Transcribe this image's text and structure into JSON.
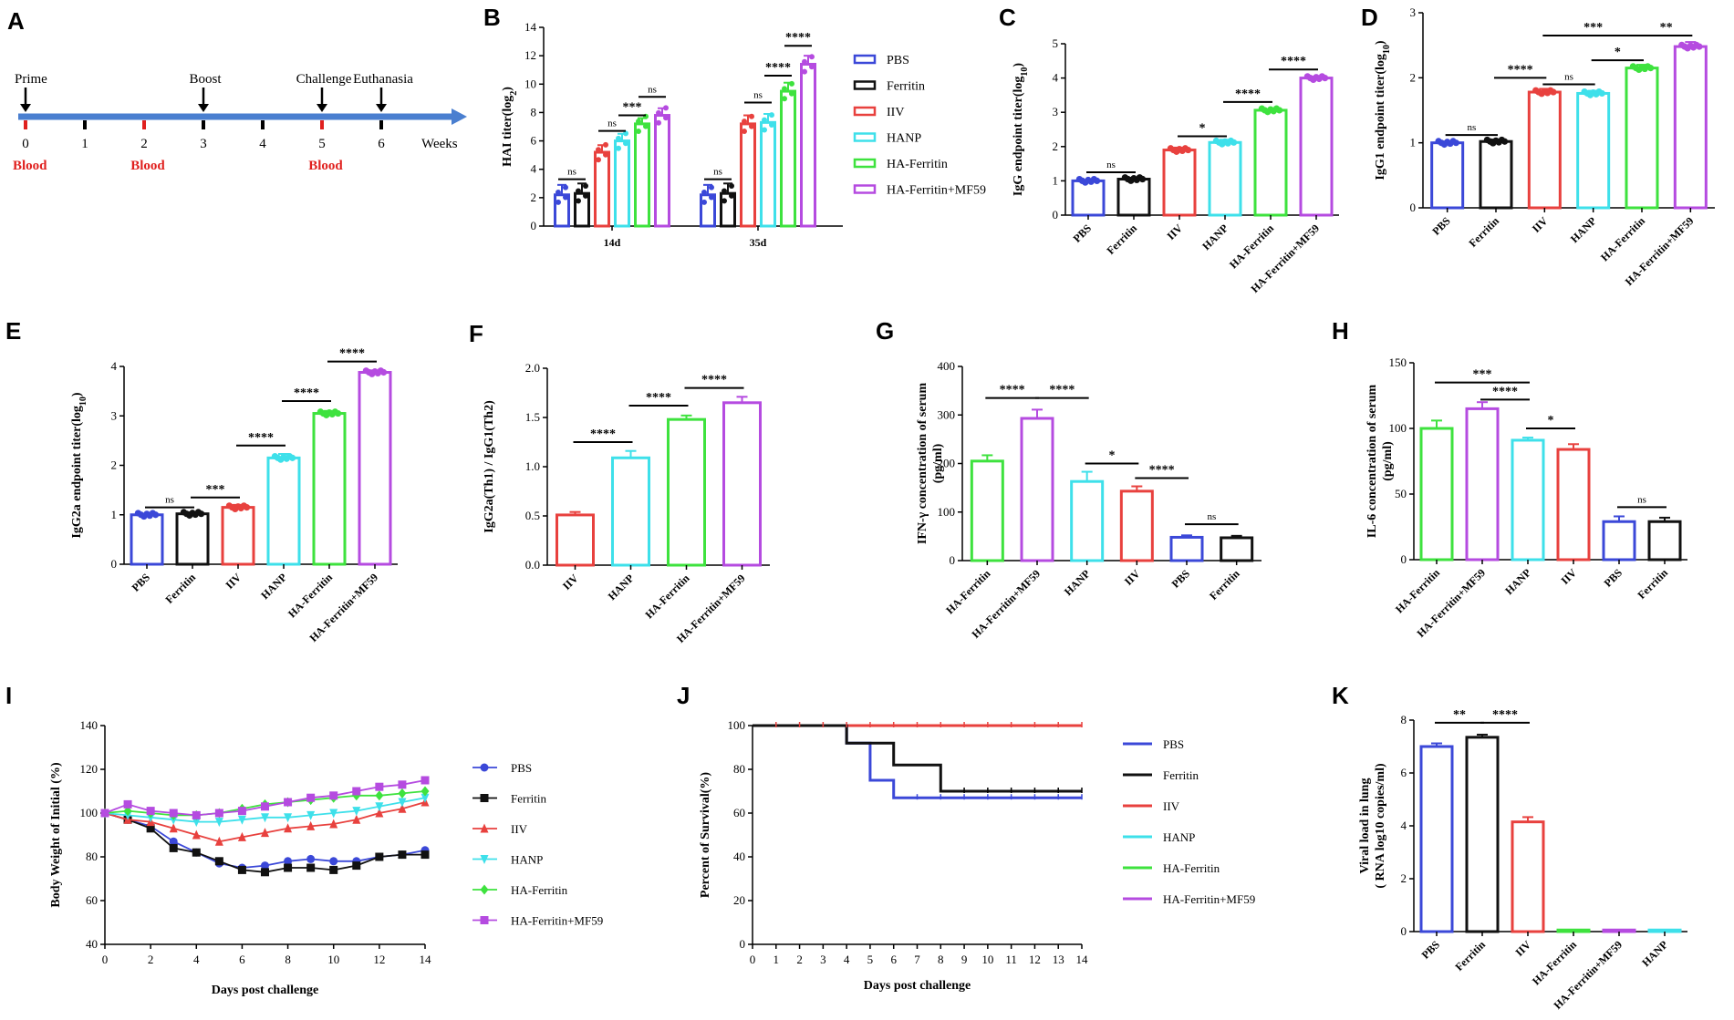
{
  "colors": {
    "PBS": "#3b48d8",
    "Ferritin": "#111111",
    "IIV": "#e8413e",
    "HANP": "#3ee0ea",
    "HA-Ferritin": "#3ee23e",
    "HA-Ferritin+MF59": "#b54be0",
    "timeline": "#4a7fd0",
    "blood": "#e0201e"
  },
  "panelA": {
    "letter": "A",
    "ticks": [
      "0",
      "1",
      "2",
      "3",
      "4",
      "5",
      "6"
    ],
    "unit": "Weeks",
    "events": [
      {
        "week": 0,
        "label": "Prime"
      },
      {
        "week": 3,
        "label": "Boost"
      },
      {
        "week": 5,
        "label": "Challenge"
      },
      {
        "week": 6,
        "label": "Euthanasia"
      }
    ],
    "blood": [
      {
        "week": 0,
        "label": "Blood"
      },
      {
        "week": 2,
        "label": "Blood"
      },
      {
        "week": 5,
        "label": "Blood"
      }
    ]
  },
  "chart_data": [
    {
      "id": "B",
      "letter": "B",
      "type": "bar",
      "ylabel": "HAI titer(log2)",
      "ylim": [
        0,
        14
      ],
      "yticks": [
        0,
        2,
        4,
        6,
        8,
        10,
        12,
        14
      ],
      "groups": [
        "14d",
        "35d"
      ],
      "series": [
        {
          "name": "PBS",
          "values": [
            2.2,
            2.2
          ],
          "err": [
            0.7,
            0.7
          ]
        },
        {
          "name": "Ferritin",
          "values": [
            2.3,
            2.3
          ],
          "err": [
            0.7,
            0.7
          ]
        },
        {
          "name": "IIV",
          "values": [
            5.2,
            7.2
          ],
          "err": [
            0.5,
            0.6
          ]
        },
        {
          "name": "HANP",
          "values": [
            6.0,
            7.3
          ],
          "err": [
            0.5,
            0.6
          ]
        },
        {
          "name": "HA-Ferritin",
          "values": [
            7.2,
            9.5
          ],
          "err": [
            0.4,
            0.6
          ]
        },
        {
          "name": "HA-Ferritin+MF59",
          "values": [
            7.8,
            11.4
          ],
          "err": [
            0.5,
            0.6
          ]
        }
      ],
      "legend": [
        "PBS",
        "Ferritin",
        "IIV",
        "HANP",
        "HA-Ferritin",
        "HA-Ferritin+MF59"
      ],
      "sig": [
        {
          "g": 0,
          "a": 0,
          "b": 1,
          "y": 3.3,
          "t": "ns"
        },
        {
          "g": 0,
          "a": 2,
          "b": 3,
          "y": 6.7,
          "t": "ns"
        },
        {
          "g": 0,
          "a": 3,
          "b": 4,
          "y": 7.8,
          "t": "***"
        },
        {
          "g": 0,
          "a": 4,
          "b": 5,
          "y": 9.1,
          "t": "ns"
        },
        {
          "g": 1,
          "a": 0,
          "b": 1,
          "y": 3.3,
          "t": "ns"
        },
        {
          "g": 1,
          "a": 2,
          "b": 3,
          "y": 8.7,
          "t": "ns"
        },
        {
          "g": 1,
          "a": 3,
          "b": 4,
          "y": 10.6,
          "t": "****"
        },
        {
          "g": 1,
          "a": 4,
          "b": 5,
          "y": 12.7,
          "t": "****"
        }
      ]
    },
    {
      "id": "C",
      "letter": "C",
      "type": "bar",
      "ylabel": "IgG endpoint titer(log10)",
      "ylim": [
        0,
        5
      ],
      "yticks": [
        0,
        1,
        2,
        3,
        4,
        5
      ],
      "categories": [
        "PBS",
        "Ferritin",
        "IIV",
        "HANP",
        "HA-Ferritin",
        "HA-Ferritin+MF59"
      ],
      "values": [
        1.0,
        1.05,
        1.9,
        2.12,
        3.06,
        4.0
      ],
      "err": [
        0.02,
        0.04,
        0.07,
        0.08,
        0.03,
        0.04
      ],
      "sig": [
        {
          "a": 0,
          "b": 1,
          "y": 1.25,
          "t": "ns"
        },
        {
          "a": 2,
          "b": 3,
          "y": 2.3,
          "t": "*"
        },
        {
          "a": 3,
          "b": 4,
          "y": 3.3,
          "t": "****"
        },
        {
          "a": 4,
          "b": 5,
          "y": 4.25,
          "t": "****"
        }
      ]
    },
    {
      "id": "D",
      "letter": "D",
      "type": "bar",
      "ylabel": "IgG1 endpoint titer(log10)",
      "ylim": [
        0,
        3
      ],
      "yticks": [
        0,
        1,
        2,
        3
      ],
      "categories": [
        "PBS",
        "Ferritin",
        "IIV",
        "HANP",
        "HA-Ferritin",
        "HA-Ferritin+MF59"
      ],
      "values": [
        1.0,
        1.02,
        1.78,
        1.76,
        2.15,
        2.48
      ],
      "err": [
        0.02,
        0.03,
        0.05,
        0.04,
        0.05,
        0.07
      ],
      "sig": [
        {
          "a": 0,
          "b": 1,
          "y": 1.12,
          "t": "ns"
        },
        {
          "a": 1,
          "b": 2,
          "y": 2.0,
          "t": "****"
        },
        {
          "a": 2,
          "b": 3,
          "y": 1.9,
          "t": "ns"
        },
        {
          "a": 3,
          "b": 4,
          "y": 2.27,
          "t": "*"
        },
        {
          "a": 2,
          "b": 4,
          "y": 2.65,
          "t": "***"
        },
        {
          "a": 4,
          "b": 5,
          "y": 2.65,
          "t": "**"
        }
      ]
    },
    {
      "id": "E",
      "letter": "E",
      "type": "bar",
      "ylabel": "IgG2a endpoint titer(log10)",
      "ylim": [
        0,
        4
      ],
      "yticks": [
        0,
        1,
        2,
        3,
        4
      ],
      "categories": [
        "PBS",
        "Ferritin",
        "IIV",
        "HANP",
        "HA-Ferritin",
        "HA-Ferritin+MF59"
      ],
      "values": [
        1.0,
        1.02,
        1.15,
        2.15,
        3.05,
        3.88
      ],
      "err": [
        0.02,
        0.03,
        0.05,
        0.08,
        0.05,
        0.04
      ],
      "sig": [
        {
          "a": 0,
          "b": 1,
          "y": 1.15,
          "t": "ns"
        },
        {
          "a": 1,
          "b": 2,
          "y": 1.35,
          "t": "***"
        },
        {
          "a": 2,
          "b": 3,
          "y": 2.4,
          "t": "****"
        },
        {
          "a": 3,
          "b": 4,
          "y": 3.3,
          "t": "****"
        },
        {
          "a": 4,
          "b": 5,
          "y": 4.1,
          "t": "****"
        }
      ]
    },
    {
      "id": "F",
      "letter": "F",
      "type": "bar",
      "ylabel": "IgG2a(Th1) / IgG1(Th2)",
      "ylim": [
        0,
        2.0
      ],
      "yticks": [
        0.0,
        0.5,
        1.0,
        1.5,
        2.0
      ],
      "categories": [
        "IIV",
        "HANP",
        "HA-Ferritin",
        "HA-Ferritin+MF59"
      ],
      "series_names": [
        "IIV",
        "HANP",
        "HA-Ferritin",
        "HA-Ferritin+MF59"
      ],
      "values": [
        0.51,
        1.09,
        1.48,
        1.65
      ],
      "err": [
        0.03,
        0.07,
        0.04,
        0.06
      ],
      "sig": [
        {
          "a": 0,
          "b": 1,
          "y": 1.25,
          "t": "****"
        },
        {
          "a": 1,
          "b": 2,
          "y": 1.62,
          "t": "****"
        },
        {
          "a": 2,
          "b": 3,
          "y": 1.8,
          "t": "****"
        }
      ]
    },
    {
      "id": "G",
      "letter": "G",
      "type": "bar",
      "ylabel": "IFN-γ concentration of serum (pg/ml)",
      "ylim": [
        0,
        400
      ],
      "yticks": [
        0,
        100,
        200,
        300,
        400
      ],
      "categories": [
        "HA-Ferritin",
        "HA-Ferritin+MF59",
        "HANP",
        "IIV",
        "PBS",
        "Ferritin"
      ],
      "series_names": [
        "HA-Ferritin",
        "HA-Ferritin+MF59",
        "HANP",
        "IIV",
        "PBS",
        "Ferritin"
      ],
      "values": [
        205,
        293,
        163,
        143,
        48,
        47
      ],
      "err": [
        12,
        18,
        20,
        10,
        4,
        4
      ],
      "sig": [
        {
          "a": 0,
          "b": 1,
          "y": 335,
          "t": "****"
        },
        {
          "a": 1,
          "b": 2,
          "y": 335,
          "t": "****"
        },
        {
          "a": 2,
          "b": 3,
          "y": 200,
          "t": "*"
        },
        {
          "a": 3,
          "b": 4,
          "y": 170,
          "t": "****"
        },
        {
          "a": 4,
          "b": 5,
          "y": 75,
          "t": "ns"
        }
      ]
    },
    {
      "id": "H",
      "letter": "H",
      "type": "bar",
      "ylabel": "IL-6 concentration of serum (pg/ml)",
      "ylim": [
        0,
        150
      ],
      "yticks": [
        0,
        50,
        100,
        150
      ],
      "categories": [
        "HA-Ferritin",
        "HA-Ferritin+MF59",
        "HANP",
        "IIV",
        "PBS",
        "Ferritin"
      ],
      "series_names": [
        "HA-Ferritin",
        "HA-Ferritin+MF59",
        "HANP",
        "IIV",
        "PBS",
        "Ferritin"
      ],
      "values": [
        100,
        115,
        91,
        84,
        29,
        29
      ],
      "err": [
        6,
        5,
        2,
        4,
        4,
        3
      ],
      "sig": [
        {
          "a": 0,
          "b": 2,
          "y": 135,
          "t": "***"
        },
        {
          "a": 1,
          "b": 2,
          "y": 122,
          "t": "****"
        },
        {
          "a": 2,
          "b": 3,
          "y": 100,
          "t": "*"
        },
        {
          "a": 4,
          "b": 5,
          "y": 40,
          "t": "ns"
        }
      ]
    },
    {
      "id": "I",
      "letter": "I",
      "type": "line",
      "xlabel": "Days post challenge",
      "ylabel": "Body Weight of Initial (%)",
      "xlim": [
        0,
        14
      ],
      "ylim": [
        40,
        140
      ],
      "xticks": [
        0,
        2,
        4,
        6,
        8,
        10,
        12,
        14
      ],
      "yticks": [
        40,
        60,
        80,
        100,
        120,
        140
      ],
      "x": [
        0,
        1,
        2,
        3,
        4,
        5,
        6,
        7,
        8,
        9,
        10,
        11,
        12,
        13,
        14
      ],
      "series": [
        {
          "name": "PBS",
          "marker": "circle",
          "values": [
            100,
            97,
            94,
            87,
            82,
            77,
            75,
            76,
            78,
            79,
            78,
            78,
            80,
            81,
            83
          ]
        },
        {
          "name": "Ferritin",
          "marker": "square",
          "values": [
            100,
            97,
            93,
            84,
            82,
            78,
            74,
            73,
            75,
            75,
            74,
            76,
            80,
            81,
            81
          ]
        },
        {
          "name": "IIV",
          "marker": "triangle",
          "values": [
            100,
            97,
            96,
            93,
            90,
            87,
            89,
            91,
            93,
            94,
            95,
            97,
            100,
            102,
            105
          ]
        },
        {
          "name": "HANP",
          "marker": "tri-down",
          "values": [
            100,
            99,
            98,
            97,
            96,
            96,
            97,
            98,
            98,
            99,
            100,
            101,
            103,
            105,
            107
          ]
        },
        {
          "name": "HA-Ferritin",
          "marker": "diamond",
          "values": [
            100,
            101,
            100,
            99,
            99,
            100,
            102,
            104,
            105,
            106,
            107,
            108,
            108,
            109,
            110
          ]
        },
        {
          "name": "HA-Ferritin+MF59",
          "marker": "square",
          "values": [
            100,
            104,
            101,
            100,
            99,
            100,
            101,
            103,
            105,
            107,
            108,
            110,
            112,
            113,
            115
          ]
        }
      ]
    },
    {
      "id": "J",
      "letter": "J",
      "type": "line",
      "xlabel": "Days post challenge",
      "ylabel": "Percent of Survival(%)",
      "xlim": [
        0,
        14
      ],
      "ylim": [
        0,
        100
      ],
      "xticks": [
        0,
        1,
        2,
        3,
        4,
        5,
        6,
        7,
        8,
        9,
        10,
        11,
        12,
        13,
        14
      ],
      "yticks": [
        0,
        20,
        40,
        60,
        80,
        100
      ],
      "series": [
        {
          "name": "PBS",
          "steps": [
            [
              0,
              100
            ],
            [
              4,
              100
            ],
            [
              4,
              92
            ],
            [
              5,
              92
            ],
            [
              5,
              75
            ],
            [
              6,
              75
            ],
            [
              6,
              67
            ],
            [
              14,
              67
            ]
          ]
        },
        {
          "name": "Ferritin",
          "steps": [
            [
              0,
              100
            ],
            [
              4,
              100
            ],
            [
              4,
              92
            ],
            [
              6,
              92
            ],
            [
              6,
              82
            ],
            [
              8,
              82
            ],
            [
              8,
              70
            ],
            [
              14,
              70
            ]
          ]
        },
        {
          "name": "IIV",
          "steps": [
            [
              0,
              100
            ],
            [
              14,
              100
            ]
          ]
        },
        {
          "name": "HANP",
          "steps": [
            [
              0,
              100
            ],
            [
              14,
              100
            ]
          ]
        },
        {
          "name": "HA-Ferritin",
          "steps": [
            [
              0,
              100
            ],
            [
              14,
              100
            ]
          ]
        },
        {
          "name": "HA-Ferritin+MF59",
          "steps": [
            [
              0,
              100
            ],
            [
              14,
              100
            ]
          ]
        }
      ]
    },
    {
      "id": "K",
      "letter": "K",
      "type": "bar",
      "ylabel": "Viral load in lung (RNA log10 copies/ml)",
      "ylim": [
        0,
        8
      ],
      "yticks": [
        0,
        2,
        4,
        6,
        8
      ],
      "categories": [
        "PBS",
        "Ferritin",
        "IIV",
        "HA-Ferritin",
        "HA-Ferritin+MF59",
        "HANP"
      ],
      "series_names": [
        "PBS",
        "Ferritin",
        "IIV",
        "HA-Ferritin",
        "HA-Ferritin+MF59",
        "HANP"
      ],
      "values": [
        7.0,
        7.35,
        4.15,
        0.06,
        0.06,
        0.06
      ],
      "err": [
        0.12,
        0.1,
        0.18,
        0.0,
        0.0,
        0.0
      ],
      "sig": [
        {
          "a": 0,
          "b": 1,
          "y": 7.9,
          "t": "**"
        },
        {
          "a": 1,
          "b": 2,
          "y": 7.9,
          "t": "****"
        }
      ]
    }
  ]
}
